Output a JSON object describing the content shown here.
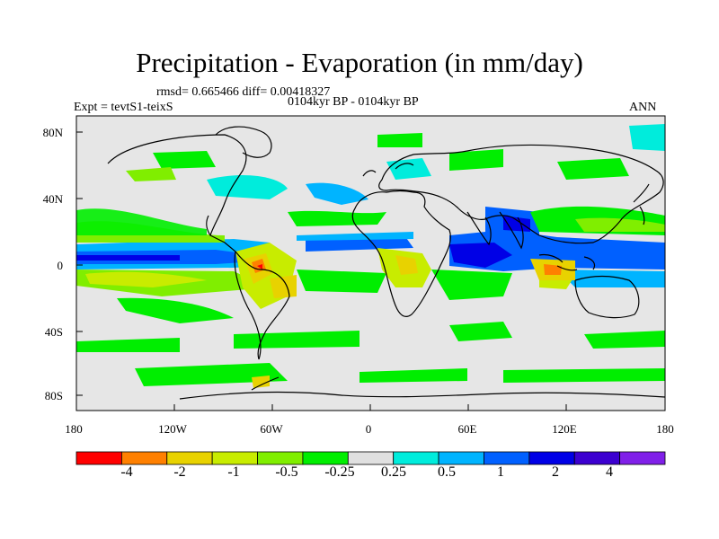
{
  "title": "Precipitation - Evaporation (in mm/day)",
  "stats_line": "rmsd= 0.665466 diff= 0.00418327",
  "period_line": "0104kyr BP - 0104kyr BP",
  "experiment_label": "Expt = tevtS1-teixS",
  "season_label": "ANN",
  "lat_labels": [
    "80N",
    "40N",
    "0",
    "40S",
    "80S"
  ],
  "lon_labels": [
    "180",
    "120W",
    "60W",
    "0",
    "60E",
    "120E",
    "180"
  ],
  "colorbar": {
    "colors": [
      "#ff0000",
      "#ff8000",
      "#e8d200",
      "#c8ec00",
      "#80ee00",
      "#00ee00",
      "#e0e0e0",
      "#00ecdc",
      "#00b4ff",
      "#0060ff",
      "#0000e6",
      "#3c00d0",
      "#8020e8"
    ],
    "labels": [
      "-4",
      "-2",
      "-1",
      "-0.5",
      "-0.25",
      "0.25",
      "0.5",
      "1",
      "2",
      "4"
    ]
  },
  "colors": {
    "background": "#e6e6e6",
    "coast": "#000000"
  }
}
